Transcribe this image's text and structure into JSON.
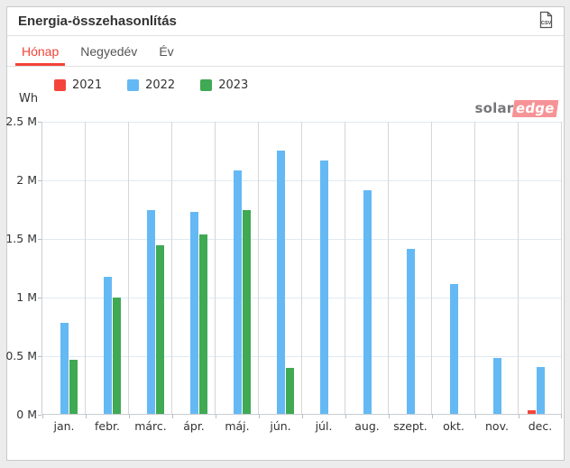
{
  "header": {
    "title": "Energia-összehasonlítás",
    "export_label": "CSV"
  },
  "tabs": {
    "items": [
      {
        "label": "Hónap",
        "active": true
      },
      {
        "label": "Negyedév",
        "active": false
      },
      {
        "label": "Év",
        "active": false
      }
    ]
  },
  "logo": {
    "part1": "solar",
    "part2": "edge"
  },
  "chart_data": {
    "type": "bar",
    "title": "Energia-összehasonlítás",
    "unit_label": "Wh",
    "categories": [
      "jan.",
      "febr.",
      "márc.",
      "ápr.",
      "máj.",
      "jún.",
      "júl.",
      "aug.",
      "szept.",
      "okt.",
      "nov.",
      "dec."
    ],
    "series": [
      {
        "name": "2021",
        "color": "#f4453c",
        "values": [
          null,
          null,
          null,
          null,
          null,
          null,
          null,
          null,
          null,
          null,
          null,
          30000
        ]
      },
      {
        "name": "2022",
        "color": "#64b9f4",
        "values": [
          780000,
          1170000,
          1740000,
          1720000,
          2080000,
          2250000,
          2160000,
          1910000,
          1410000,
          1110000,
          480000,
          400000
        ]
      },
      {
        "name": "2023",
        "color": "#3fa954",
        "values": [
          460000,
          990000,
          1440000,
          1530000,
          1740000,
          390000,
          null,
          null,
          null,
          null,
          null,
          null
        ]
      }
    ],
    "ylim": [
      0,
      2500000
    ],
    "yticks": [
      {
        "label": "0 M",
        "value": 0
      },
      {
        "label": "0.5 M",
        "value": 500000
      },
      {
        "label": "1 M",
        "value": 1000000
      },
      {
        "label": "1.5 M",
        "value": 1500000
      },
      {
        "label": "2 M",
        "value": 2000000
      },
      {
        "label": "2.5 M",
        "value": 2500000
      }
    ],
    "grid": true,
    "legend_position": "top-left"
  },
  "colors": {
    "accent_red": "#f44336",
    "bar_2021": "#f4453c",
    "bar_2022": "#64b9f4",
    "bar_2023": "#3fa954",
    "page_background": "#ececec",
    "card_background": "#ffffff"
  }
}
